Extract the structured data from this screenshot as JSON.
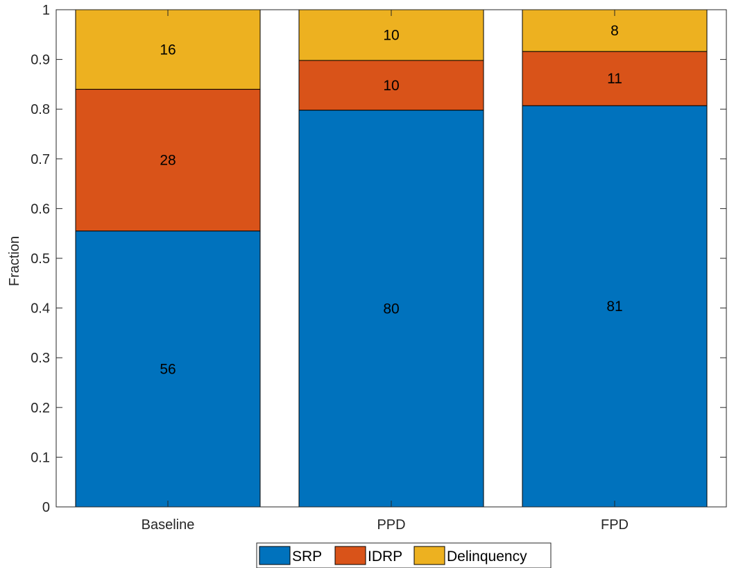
{
  "chart_data": {
    "type": "bar",
    "stacked": true,
    "categories": [
      "Baseline",
      "PPD",
      "FPD"
    ],
    "series": [
      {
        "name": "SRP",
        "color": "#0072BD",
        "values": [
          0.555,
          0.798,
          0.807
        ],
        "labels": [
          "56",
          "80",
          "81"
        ]
      },
      {
        "name": "IDRP",
        "color": "#D95319",
        "values": [
          0.285,
          0.1,
          0.109
        ],
        "labels": [
          "28",
          "10",
          "11"
        ]
      },
      {
        "name": "Delinquency",
        "color": "#EDB120",
        "values": [
          0.16,
          0.102,
          0.084
        ],
        "labels": [
          "16",
          "10",
          "8"
        ]
      }
    ],
    "xlabel": "",
    "ylabel": "Fraction",
    "ylim": [
      0,
      1
    ],
    "yticks": [
      "0",
      "0.1",
      "0.2",
      "0.3",
      "0.4",
      "0.5",
      "0.6",
      "0.7",
      "0.8",
      "0.9",
      "1"
    ],
    "grid": false,
    "legend_position": "bottom-center"
  }
}
